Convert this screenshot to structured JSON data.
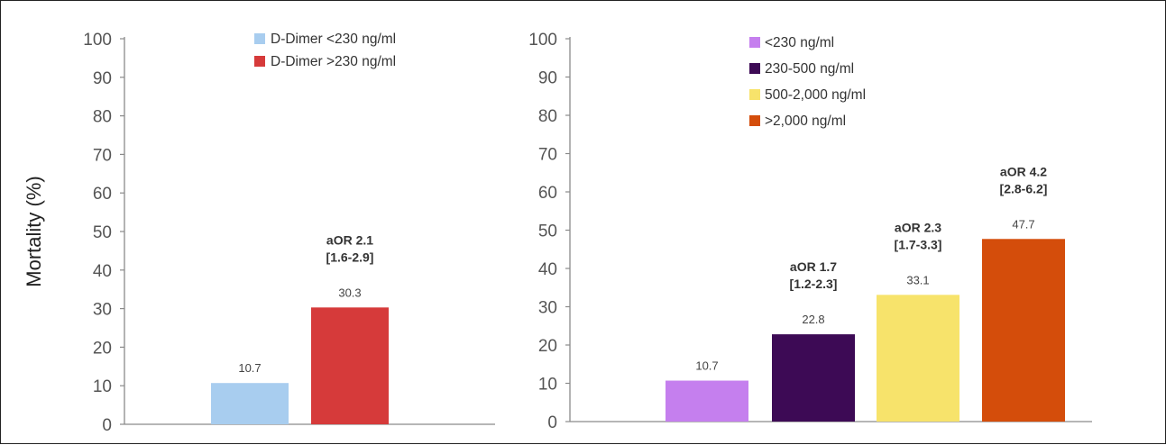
{
  "chart_data": [
    {
      "type": "bar",
      "title": "",
      "xlabel": "",
      "ylabel": "Mortality (%)",
      "ylim": [
        0,
        100
      ],
      "yticks": [
        0,
        10,
        20,
        30,
        40,
        50,
        60,
        70,
        80,
        90,
        100
      ],
      "legend_position": "top-right",
      "categories": [
        "D-Dimer <230 ng/ml",
        "D-Dimer >230 ng/ml"
      ],
      "values": [
        10.7,
        30.3
      ],
      "data_labels": [
        "10.7",
        "30.3"
      ],
      "colors": [
        "#a8cdef",
        "#d63a3a"
      ],
      "annotations": [
        {
          "index": 1,
          "line1": "aOR 2.1",
          "line2": "[1.6-2.9]"
        }
      ]
    },
    {
      "type": "bar",
      "title": "",
      "xlabel": "",
      "ylabel": "",
      "ylim": [
        0,
        100
      ],
      "yticks": [
        0,
        10,
        20,
        30,
        40,
        50,
        60,
        70,
        80,
        90,
        100
      ],
      "legend_position": "top-left",
      "categories": [
        "<230 ng/ml",
        "230-500 ng/ml",
        "500-2,000 ng/ml",
        ">2,000 ng/ml"
      ],
      "values": [
        10.7,
        22.8,
        33.1,
        47.7
      ],
      "data_labels": [
        "10.7",
        "22.8",
        "33.1",
        "47.7"
      ],
      "colors": [
        "#c57fee",
        "#3d0a55",
        "#f7e36b",
        "#d44d0b"
      ],
      "annotations": [
        {
          "index": 1,
          "line1": "aOR 1.7",
          "line2": "[1.2-2.3]"
        },
        {
          "index": 2,
          "line1": "aOR 2.3",
          "line2": "[1.7-3.3]"
        },
        {
          "index": 3,
          "line1": "aOR 4.2",
          "line2": "[2.8-6.2]"
        }
      ]
    }
  ]
}
